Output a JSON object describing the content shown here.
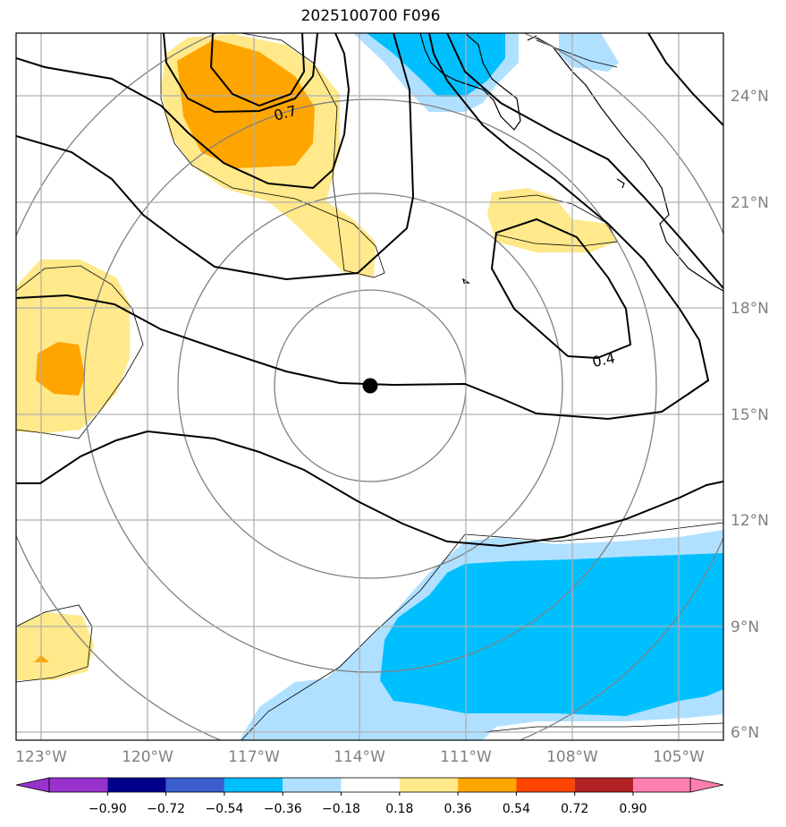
{
  "title": "2025100700 F096",
  "map": {
    "lon_range": [
      -123.5,
      -103.5
    ],
    "lat_range": [
      5.8,
      26.0
    ],
    "center": {
      "lon": -113.7,
      "lat": 15.7
    },
    "lon_ticks": [
      "123°W",
      "120°W",
      "117°W",
      "114°W",
      "111°W",
      "108°W",
      "105°W"
    ],
    "lat_ticks": [
      "24°N",
      "21°N",
      "18°N",
      "15°N",
      "12°N",
      "9°N",
      "6°N"
    ],
    "contour_labels": [
      "0.7",
      "0.4"
    ]
  },
  "colorbar": {
    "ticks": [
      "−0.90",
      "−0.72",
      "−0.54",
      "−0.36",
      "−0.18",
      "0.18",
      "0.36",
      "0.54",
      "0.72",
      "0.90"
    ],
    "colors": [
      "#9932cc",
      "#00008b",
      "#3a5fcd",
      "#00bfff",
      "#b0e0ff",
      "#ffffff",
      "#ffe98a",
      "#ffa500",
      "#ff4500",
      "#b22222",
      "#ff80b0"
    ]
  }
}
